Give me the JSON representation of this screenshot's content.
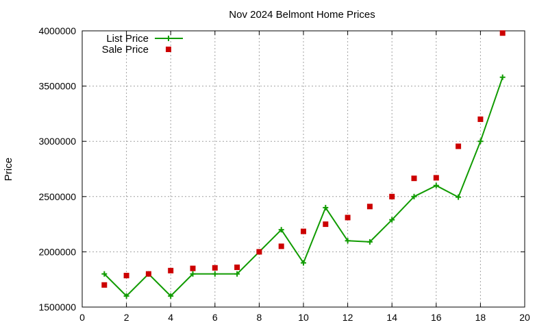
{
  "chart_data": {
    "type": "line",
    "title": "Nov 2024 Belmont Home Prices",
    "xlabel": "",
    "ylabel": "Price",
    "xlim": [
      0,
      20
    ],
    "ylim": [
      1500000,
      4000000
    ],
    "xticks": [
      0,
      2,
      4,
      6,
      8,
      10,
      12,
      14,
      16,
      18,
      20
    ],
    "yticks": [
      1500000,
      2000000,
      2500000,
      3000000,
      3500000,
      4000000
    ],
    "grid": true,
    "legend_position": "top-left",
    "series": [
      {
        "name": "List Price",
        "style": "lines+points",
        "marker": "plus",
        "color": "#109b00",
        "x": [
          1,
          2,
          3,
          4,
          5,
          6,
          7,
          8,
          9,
          10,
          11,
          12,
          13,
          14,
          15,
          16,
          17,
          18,
          19
        ],
        "y": [
          1800000,
          1600000,
          1800000,
          1600000,
          1800000,
          1800000,
          1800000,
          2000000,
          2200000,
          1900000,
          2400000,
          2100000,
          2090000,
          2290000,
          2500000,
          2600000,
          2495000,
          3000000,
          3580000
        ]
      },
      {
        "name": "Sale Price",
        "style": "points",
        "marker": "square",
        "color": "#cc0000",
        "x": [
          1,
          2,
          3,
          4,
          5,
          6,
          7,
          8,
          9,
          10,
          11,
          12,
          13,
          14,
          15,
          16,
          17,
          18,
          19
        ],
        "y": [
          1700000,
          1785000,
          1800000,
          1830000,
          1850000,
          1855000,
          1860000,
          2000000,
          2050000,
          2185000,
          2250000,
          2310000,
          2410000,
          2500000,
          2665000,
          2670000,
          2955000,
          3200000,
          3980000
        ]
      }
    ]
  }
}
